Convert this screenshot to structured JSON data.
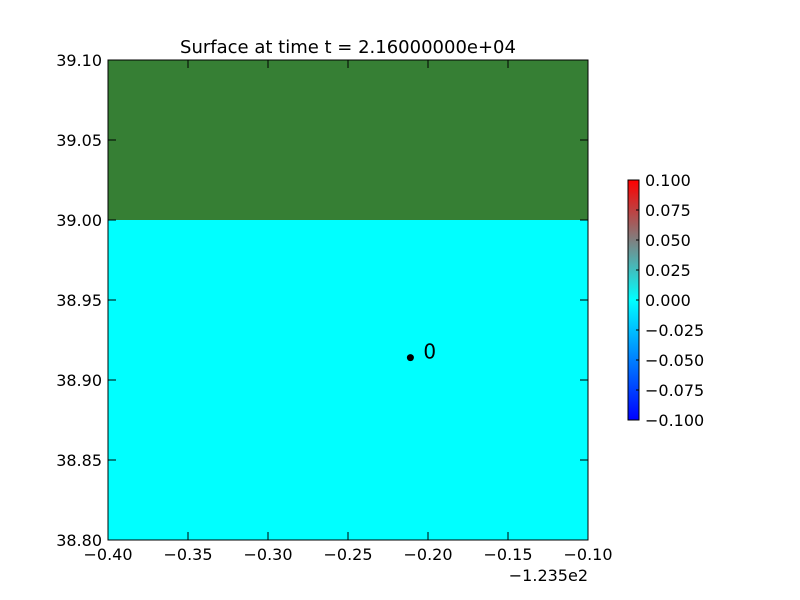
{
  "chart_data": {
    "type": "heatmap",
    "title": "Surface at time t = 2.16000000e+04",
    "xlabel": "",
    "ylabel": "",
    "x_offset_label": "−1.235e2",
    "xlim": [
      -0.4,
      -0.1
    ],
    "ylim": [
      38.8,
      39.1
    ],
    "x_ticks": [
      -0.4,
      -0.35,
      -0.3,
      -0.25,
      -0.2,
      -0.15,
      -0.1
    ],
    "x_tick_labels": [
      "−0.40",
      "−0.35",
      "−0.30",
      "−0.25",
      "−0.20",
      "−0.15",
      "−0.10"
    ],
    "y_ticks": [
      38.8,
      38.85,
      38.9,
      38.95,
      39.0,
      39.05,
      39.1
    ],
    "y_tick_labels": [
      "38.80",
      "38.85",
      "38.90",
      "38.95",
      "39.00",
      "39.05",
      "39.10"
    ],
    "regions": [
      {
        "kind": "land",
        "y_range": [
          39.0,
          39.1
        ],
        "color": "#367f34"
      },
      {
        "kind": "water",
        "y_range": [
          38.8,
          39.0
        ],
        "color": "#00ffff"
      }
    ],
    "markers": [
      {
        "label": "0",
        "x": -0.211,
        "y": 38.914,
        "color": "#000000"
      }
    ],
    "colorbar": {
      "min": -0.1,
      "max": 0.1,
      "ticks": [
        -0.1,
        -0.075,
        -0.05,
        -0.025,
        0.0,
        0.025,
        0.05,
        0.075,
        0.1
      ],
      "tick_labels": [
        "−0.100",
        "−0.075",
        "−0.050",
        "−0.025",
        "0.000",
        "0.025",
        "0.050",
        "0.075",
        "0.100"
      ],
      "colors": [
        "#0000ff",
        "#00ffff",
        "#ff0000"
      ]
    },
    "grid": false
  }
}
